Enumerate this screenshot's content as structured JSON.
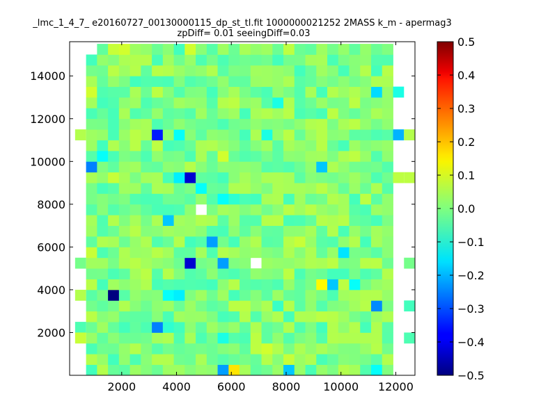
{
  "chart_data": {
    "type": "heatmap",
    "title_line1": "_lmc_1_4_7_ e20160727_00130000115_dp_st_tl.fit 1000000021252 2MASS k_m - apermag3",
    "title_line2": "zpDiff= 0.01 seeingDiff=0.03",
    "xlabel": "",
    "ylabel": "",
    "xlim": [
      100,
      12700
    ],
    "ylim": [
      0,
      15600
    ],
    "xticks": [
      2000,
      4000,
      6000,
      8000,
      10000,
      12000
    ],
    "yticks": [
      2000,
      4000,
      6000,
      8000,
      10000,
      12000,
      14000
    ],
    "grid": false,
    "colorbar": {
      "colormap": "jet",
      "vmin": -0.5,
      "vmax": 0.5,
      "ticks": [
        -0.5,
        -0.4,
        -0.3,
        -0.2,
        -0.1,
        0.0,
        0.1,
        0.2,
        0.3,
        0.4,
        0.5
      ],
      "tick_labels": [
        "−0.5",
        "−0.4",
        "−0.3",
        "−0.2",
        "−0.1",
        "0.0",
        "0.1",
        "0.2",
        "0.3",
        "0.4",
        "0.5"
      ]
    },
    "bin_width": 400,
    "bin_height": 500,
    "x_start": 100,
    "y_start": 0,
    "rows_top_to_bottom": [
      "..................1...1..1..1......1..1..............1.11...........1..",
      "...........1..............1...1.........1.................1.1............",
      "...............1.1.......1..........1.............1.1..................",
      "...............1..............................................1.........",
      "........................1..1............1.............................",
      ".........................1..........1...................................",
      "....................1..........1................1........1.............",
      "...........1...................................................1......",
      "..........................1........1............1......................",
      "..........................1............................................",
      "...........1....1........1.................1..........1........1.......",
      "..........................1.............1..............................",
      "..........................1.............1...............1.............1",
      "........1.............1.......1........1.............1...1......1.....",
      "..1.........1..................1....1.............1...............1...."
    ],
    "cells": [
      {
        "x": 1300,
        "y": 15250,
        "v": -0.03
      },
      {
        "x": 1700,
        "y": 15250,
        "v": 0.07
      },
      {
        "x": 2100,
        "y": 15250,
        "v": 0.08
      },
      {
        "x": 2500,
        "y": 15250,
        "v": 0.03
      },
      {
        "x": 2900,
        "y": 15250,
        "v": 0.02
      },
      {
        "x": 3300,
        "y": 15250,
        "v": -0.02
      },
      {
        "x": 3700,
        "y": 15250,
        "v": 0.01
      },
      {
        "x": 4100,
        "y": 15250,
        "v": -0.06
      },
      {
        "x": 4500,
        "y": 15250,
        "v": 0.08
      },
      {
        "x": 4900,
        "y": 15250,
        "v": 0.01
      },
      {
        "x": 5300,
        "y": 15250,
        "v": -0.04
      },
      {
        "x": 5700,
        "y": 15250,
        "v": 0.03
      },
      {
        "x": 6100,
        "y": 15250,
        "v": -0.02
      },
      {
        "x": 6500,
        "y": 15250,
        "v": 0.04
      },
      {
        "x": 6900,
        "y": 15250,
        "v": 0.02
      },
      {
        "x": 7300,
        "y": 15250,
        "v": 0.03
      },
      {
        "x": 7700,
        "y": 15250,
        "v": -0.02
      },
      {
        "x": 8100,
        "y": 15250,
        "v": 0.06
      },
      {
        "x": 8500,
        "y": 15250,
        "v": -0.02
      },
      {
        "x": 8900,
        "y": 15250,
        "v": -0.03
      },
      {
        "x": 9300,
        "y": 15250,
        "v": 0.03
      },
      {
        "x": 9700,
        "y": 15250,
        "v": -0.01
      },
      {
        "x": 10100,
        "y": 15250,
        "v": 0.02
      },
      {
        "x": 10500,
        "y": 15250,
        "v": -0.03
      },
      {
        "x": 10900,
        "y": 15250,
        "v": 0.02
      },
      {
        "x": 11300,
        "y": 15250,
        "v": -0.02
      },
      {
        "x": 11700,
        "y": 15250,
        "v": 0.0
      },
      {
        "x": 900,
        "y": 14750,
        "v": -0.06
      },
      {
        "x": 900,
        "y": 13250,
        "v": 0.08
      },
      {
        "x": 11300,
        "y": 13250,
        "v": -0.16
      },
      {
        "x": 12100,
        "y": 13250,
        "v": -0.1
      },
      {
        "x": 7700,
        "y": 12750,
        "v": -0.1
      },
      {
        "x": 3300,
        "y": 11250,
        "v": -0.35
      },
      {
        "x": 4100,
        "y": 11250,
        "v": -0.12
      },
      {
        "x": 7300,
        "y": 11250,
        "v": -0.1
      },
      {
        "x": 11300,
        "y": 11250,
        "v": -0.05
      },
      {
        "x": 11700,
        "y": 11250,
        "v": -0.04
      },
      {
        "x": 12100,
        "y": 11250,
        "v": -0.2
      },
      {
        "x": 500,
        "y": 11250,
        "v": 0.05
      },
      {
        "x": 900,
        "y": 11250,
        "v": 0.03
      },
      {
        "x": 12500,
        "y": 11250,
        "v": 0.05
      },
      {
        "x": 1300,
        "y": 10750,
        "v": -0.06
      },
      {
        "x": 1300,
        "y": 10250,
        "v": -0.12
      },
      {
        "x": 5700,
        "y": 10250,
        "v": 0.08
      },
      {
        "x": 10500,
        "y": 10250,
        "v": 0.06
      },
      {
        "x": 900,
        "y": 9750,
        "v": -0.25
      },
      {
        "x": 9300,
        "y": 9750,
        "v": -0.18
      },
      {
        "x": 1700,
        "y": 9250,
        "v": 0.07
      },
      {
        "x": 4100,
        "y": 9250,
        "v": -0.14
      },
      {
        "x": 4500,
        "y": 9250,
        "v": -0.42
      },
      {
        "x": 11300,
        "y": 9250,
        "v": -0.05
      },
      {
        "x": 12100,
        "y": 9250,
        "v": 0.06
      },
      {
        "x": 12500,
        "y": 9250,
        "v": 0.06
      },
      {
        "x": 4900,
        "y": 8750,
        "v": -0.12
      },
      {
        "x": 5700,
        "y": 8250,
        "v": -0.12
      },
      {
        "x": 6100,
        "y": 8250,
        "v": -0.08
      },
      {
        "x": 900,
        "y": 7750,
        "v": -0.04
      },
      {
        "x": 3700,
        "y": 7250,
        "v": -0.18
      },
      {
        "x": 5300,
        "y": 6250,
        "v": -0.22
      },
      {
        "x": 8500,
        "y": 6250,
        "v": 0.07
      },
      {
        "x": 10500,
        "y": 6250,
        "v": 0.05
      },
      {
        "x": 900,
        "y": 5750,
        "v": 0.07
      },
      {
        "x": 10100,
        "y": 5750,
        "v": -0.15
      },
      {
        "x": 4500,
        "y": 5250,
        "v": -0.42
      },
      {
        "x": 5700,
        "y": 5250,
        "v": -0.22
      },
      {
        "x": 500,
        "y": 5250,
        "v": -0.01
      },
      {
        "x": 12500,
        "y": 5250,
        "v": -0.01
      },
      {
        "x": 9300,
        "y": 4250,
        "v": 0.13
      },
      {
        "x": 9700,
        "y": 4250,
        "v": -0.18
      },
      {
        "x": 10500,
        "y": 4250,
        "v": -0.12
      },
      {
        "x": 7700,
        "y": 4250,
        "v": -0.05
      },
      {
        "x": 1700,
        "y": 3750,
        "v": -0.5
      },
      {
        "x": 3700,
        "y": 3750,
        "v": -0.12
      },
      {
        "x": 4100,
        "y": 3750,
        "v": -0.14
      },
      {
        "x": 500,
        "y": 3750,
        "v": 0.05
      },
      {
        "x": 11300,
        "y": 3250,
        "v": -0.24
      },
      {
        "x": 7700,
        "y": 3250,
        "v": -0.07
      },
      {
        "x": 12500,
        "y": 3250,
        "v": -0.06
      },
      {
        "x": 3300,
        "y": 2250,
        "v": -0.25
      },
      {
        "x": 3700,
        "y": 2250,
        "v": -0.08
      },
      {
        "x": 500,
        "y": 2250,
        "v": -0.05
      },
      {
        "x": 900,
        "y": 2250,
        "v": -0.02
      },
      {
        "x": 5700,
        "y": 1750,
        "v": -0.1
      },
      {
        "x": 11700,
        "y": 1750,
        "v": -0.04
      },
      {
        "x": 500,
        "y": 1750,
        "v": 0.07
      },
      {
        "x": 12500,
        "y": 1750,
        "v": -0.05
      },
      {
        "x": 7300,
        "y": 1250,
        "v": 0.08
      },
      {
        "x": 6900,
        "y": 1250,
        "v": 0.06
      },
      {
        "x": 9300,
        "y": 1250,
        "v": 0.04
      },
      {
        "x": 1700,
        "y": 750,
        "v": -0.06
      },
      {
        "x": 2500,
        "y": 750,
        "v": -0.05
      },
      {
        "x": 8100,
        "y": 750,
        "v": 0.07
      },
      {
        "x": 5700,
        "y": 250,
        "v": -0.22
      },
      {
        "x": 6100,
        "y": 250,
        "v": 0.15
      },
      {
        "x": 8100,
        "y": 250,
        "v": -0.18
      },
      {
        "x": 11300,
        "y": 250,
        "v": -0.12
      }
    ],
    "empty_bins": [
      {
        "x": 4900,
        "y": 7750
      },
      {
        "x": 6900,
        "y": 5250
      }
    ],
    "background_value_range": [
      -0.06,
      0.06
    ]
  }
}
